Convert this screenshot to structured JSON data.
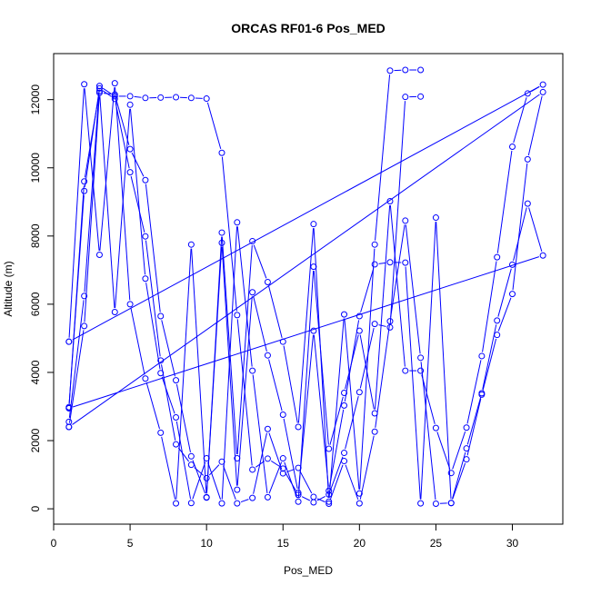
{
  "chart_data": {
    "type": "line",
    "title": "ORCAS RF01-6 Pos_MED",
    "xlabel": "Pos_MED",
    "ylabel": "Altitude (m)",
    "xlim": [
      0,
      33.3
    ],
    "ylim": [
      -450,
      13350
    ],
    "xticks": [
      0,
      5,
      10,
      15,
      20,
      25,
      30
    ],
    "yticks": [
      0,
      2000,
      4000,
      6000,
      8000,
      10000,
      12000
    ],
    "grid": false,
    "legend": "none",
    "line_color": "#0000ff",
    "marker": "open-circle",
    "series": [
      {
        "values": [
          [
            1,
            4900
          ],
          [
            2,
            12450
          ],
          [
            3,
            7450
          ],
          [
            4,
            12480
          ],
          [
            5,
            6000
          ],
          [
            6,
            3820
          ],
          [
            7,
            2230
          ],
          [
            8,
            160
          ],
          [
            9,
            7750
          ],
          [
            10,
            330
          ],
          [
            11,
            8100
          ],
          [
            12,
            1480
          ],
          [
            13,
            7850
          ],
          [
            14,
            6650
          ],
          [
            15,
            4900
          ],
          [
            16,
            2400
          ],
          [
            17,
            8350
          ],
          [
            18,
            210
          ],
          [
            19,
            5700
          ],
          [
            20,
            450
          ],
          [
            21,
            7750
          ],
          [
            22,
            12850
          ],
          [
            23,
            12870
          ],
          [
            24,
            12870
          ]
        ]
      },
      {
        "values": [
          [
            1,
            2950
          ],
          [
            2,
            9600
          ],
          [
            3,
            12250
          ],
          [
            4,
            5770
          ],
          [
            5,
            11850
          ],
          [
            6,
            6750
          ],
          [
            7,
            3980
          ],
          [
            8,
            2680
          ],
          [
            9,
            170
          ],
          [
            10,
            1480
          ],
          [
            11,
            160
          ],
          [
            12,
            8400
          ],
          [
            13,
            4050
          ],
          [
            14,
            340
          ],
          [
            15,
            1480
          ],
          [
            16,
            210
          ],
          [
            17,
            7100
          ],
          [
            18,
            1760
          ],
          [
            19,
            3400
          ],
          [
            20,
            5220
          ],
          [
            21,
            2800
          ],
          [
            22,
            9020
          ],
          [
            23,
            4050
          ],
          [
            24,
            4050
          ],
          [
            25,
            2370
          ],
          [
            26,
            1050
          ],
          [
            27,
            2380
          ],
          [
            28,
            4480
          ],
          [
            29,
            7380
          ],
          [
            30,
            10620
          ],
          [
            31,
            12180
          ],
          [
            32,
            12440
          ],
          [
            1,
            4900
          ]
        ]
      },
      {
        "values": [
          [
            1,
            2550
          ],
          [
            2,
            6240
          ],
          [
            3,
            12400
          ],
          [
            4,
            12100
          ],
          [
            5,
            12100
          ],
          [
            6,
            12050
          ],
          [
            7,
            12060
          ],
          [
            8,
            12070
          ],
          [
            9,
            12050
          ],
          [
            10,
            12030
          ],
          [
            11,
            10440
          ],
          [
            12,
            5680
          ],
          [
            13,
            1150
          ],
          [
            14,
            1470
          ],
          [
            15,
            1180
          ],
          [
            16,
            410
          ],
          [
            17,
            190
          ],
          [
            18,
            420
          ],
          [
            19,
            1640
          ],
          [
            20,
            3420
          ],
          [
            21,
            5420
          ],
          [
            22,
            5320
          ],
          [
            23,
            12080
          ],
          [
            24,
            12090
          ]
        ]
      },
      {
        "values": [
          [
            1,
            2400
          ],
          [
            2,
            5360
          ],
          [
            3,
            12200
          ],
          [
            4,
            12150
          ],
          [
            5,
            10550
          ],
          [
            6,
            9640
          ],
          [
            7,
            5650
          ],
          [
            8,
            3770
          ],
          [
            9,
            1540
          ],
          [
            10,
            340
          ],
          [
            11,
            7800
          ],
          [
            12,
            560
          ],
          [
            13,
            6350
          ],
          [
            14,
            4500
          ],
          [
            15,
            2760
          ],
          [
            16,
            470
          ],
          [
            17,
            5220
          ],
          [
            18,
            530
          ],
          [
            19,
            3030
          ],
          [
            20,
            5650
          ],
          [
            21,
            7170
          ],
          [
            22,
            7230
          ],
          [
            23,
            7220
          ],
          [
            24,
            160
          ],
          [
            25,
            8540
          ],
          [
            26,
            170
          ],
          [
            27,
            1770
          ],
          [
            28,
            3390
          ],
          [
            29,
            5520
          ],
          [
            30,
            7160
          ],
          [
            31,
            8950
          ],
          [
            32,
            7430
          ],
          [
            1,
            2950
          ]
        ]
      },
      {
        "values": [
          [
            1,
            2980
          ],
          [
            2,
            9320
          ],
          [
            3,
            12330
          ],
          [
            4,
            12020
          ],
          [
            5,
            9870
          ],
          [
            6,
            7990
          ],
          [
            7,
            4350
          ],
          [
            8,
            1890
          ],
          [
            9,
            1290
          ],
          [
            10,
            900
          ],
          [
            11,
            1380
          ],
          [
            12,
            160
          ],
          [
            13,
            320
          ],
          [
            14,
            2340
          ],
          [
            15,
            1040
          ],
          [
            16,
            1200
          ],
          [
            17,
            350
          ],
          [
            18,
            150
          ],
          [
            19,
            1400
          ],
          [
            20,
            160
          ],
          [
            21,
            2260
          ],
          [
            22,
            5500
          ],
          [
            23,
            8450
          ],
          [
            24,
            4430
          ],
          [
            25,
            150
          ],
          [
            26,
            170
          ],
          [
            27,
            1450
          ],
          [
            28,
            3350
          ],
          [
            29,
            5100
          ],
          [
            30,
            6300
          ],
          [
            31,
            10250
          ],
          [
            32,
            12220
          ],
          [
            1,
            2400
          ]
        ]
      }
    ]
  }
}
